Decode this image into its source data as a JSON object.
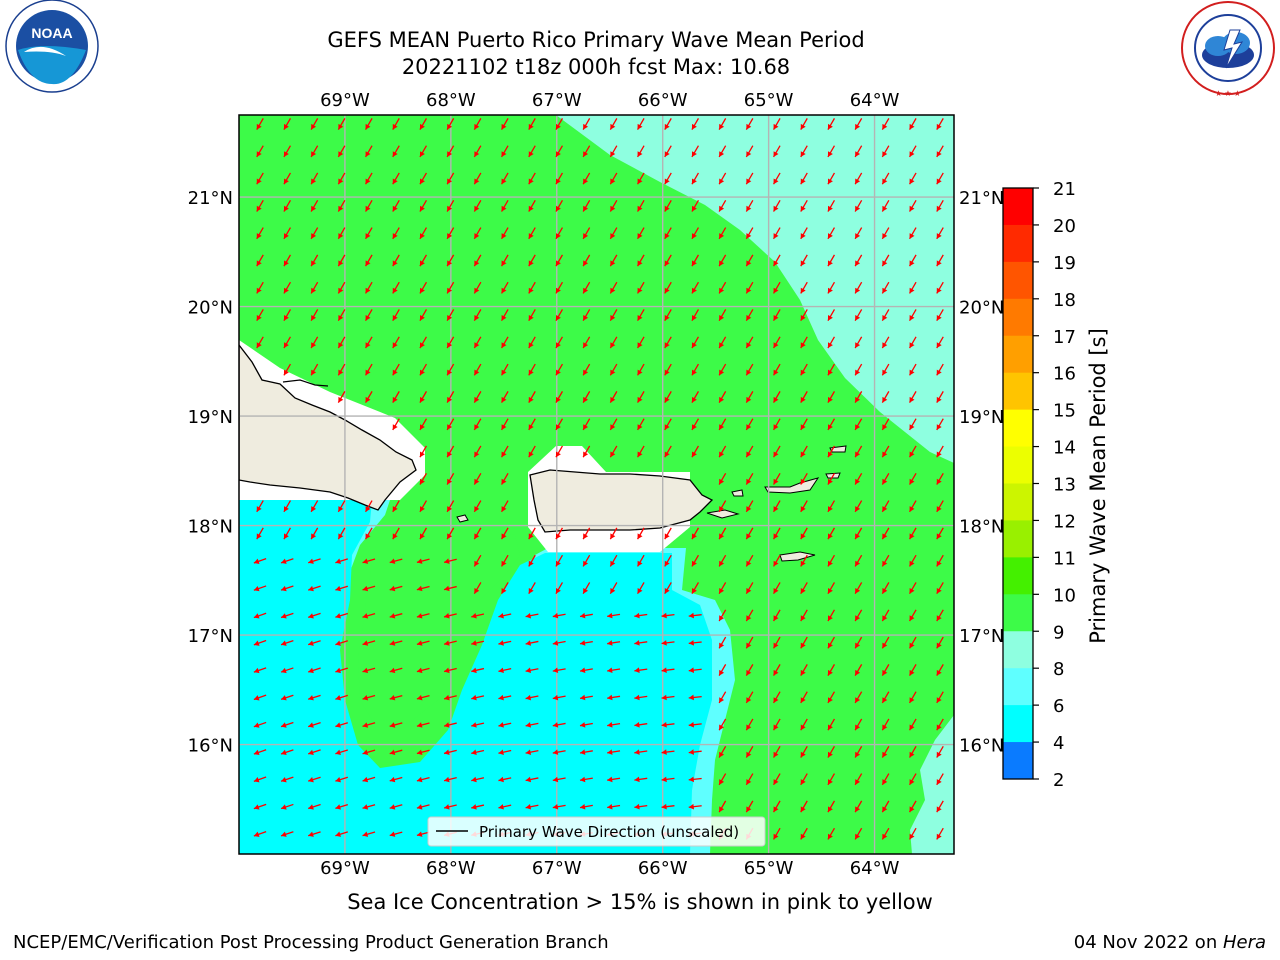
{
  "title": {
    "line1": "GEFS MEAN Puerto Rico Primary Wave Mean Period",
    "line2": "20221102 t18z 000h fcst   Max: 10.68"
  },
  "logos": {
    "left": {
      "name": "noaa-logo",
      "text": "NOAA",
      "ring_text": "NATIONAL OCEANIC AND ATMOSPHERIC ADMINISTRATION • U.S. DEPARTMENT OF COMMERCE"
    },
    "right": {
      "name": "nws-logo",
      "ring_text": "NATIONAL WEATHER SERVICE"
    }
  },
  "map": {
    "lon_labels": [
      "69°W",
      "68°W",
      "67°W",
      "66°W",
      "65°W",
      "64°W"
    ],
    "lat_labels": [
      "21°N",
      "20°N",
      "19°N",
      "18°N",
      "17°N",
      "16°N"
    ],
    "lon_values": [
      -69,
      -68,
      -67,
      -66,
      -65,
      -64
    ],
    "lat_values": [
      21,
      20,
      19,
      18,
      17,
      16
    ],
    "extent": {
      "lon_min": -70.0,
      "lon_max": -63.25,
      "lat_min": 15.0,
      "lat_max": 21.75
    },
    "legend_label": "Primary Wave Direction (unscaled)",
    "arrow_color": "#ff0000",
    "land_color": "#efecdf",
    "zone_colors": {
      "cyan_dark": "#00ffff",
      "cyan_light": "#5fffff",
      "aqua": "#8effe0",
      "green": "#3dfb48"
    }
  },
  "colorbar": {
    "label": "Primary Wave Mean Period [s]",
    "ticks": [
      "21",
      "20",
      "19",
      "18",
      "17",
      "16",
      "15",
      "14",
      "13",
      "12",
      "11",
      "10",
      "9",
      "8",
      "6",
      "4",
      "2"
    ],
    "colors": [
      "#ff0000",
      "#ff2a00",
      "#ff5500",
      "#ff7a00",
      "#ff9f00",
      "#ffc400",
      "#ffff00",
      "#ecff00",
      "#ccf500",
      "#99f000",
      "#44f000",
      "#3dfb48",
      "#8effe0",
      "#5fffff",
      "#00ffff",
      "#0a7bff",
      "#0000ff"
    ]
  },
  "bottom_note": "Sea Ice Concentration > 15% is shown in pink to yellow",
  "footer": {
    "left": "NCEP/EMC/Verification Post Processing Product Generation Branch",
    "right_date": "04 Nov 2022 on ",
    "right_host": "Hera"
  }
}
